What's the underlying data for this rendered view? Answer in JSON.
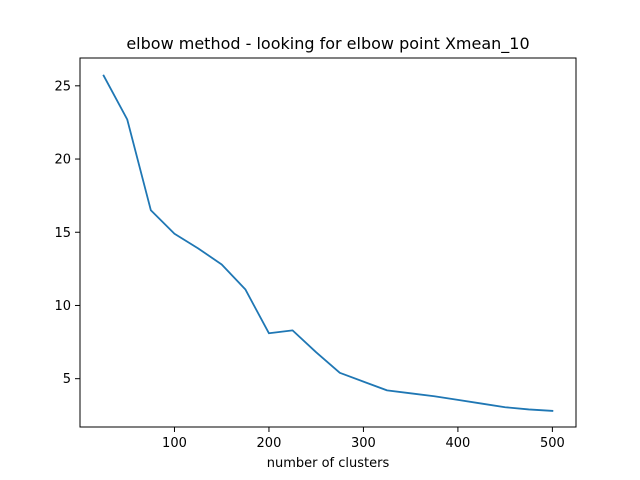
{
  "chart_data": {
    "type": "line",
    "title": "elbow method - looking for elbow point Xmean_10",
    "xlabel": "number of clusters",
    "ylabel": "",
    "xlim": [
      0,
      525
    ],
    "ylim": [
      1.7,
      26.9
    ],
    "xticks": [
      100,
      200,
      300,
      400,
      500
    ],
    "yticks": [
      5,
      10,
      15,
      20,
      25
    ],
    "grid": false,
    "line_color": "#1f77b4",
    "series": [
      {
        "x": [
          25,
          50,
          75,
          100,
          125,
          150,
          175,
          200,
          225,
          250,
          275,
          300,
          325,
          350,
          375,
          400,
          425,
          450,
          475,
          500
        ],
        "values": [
          25.7,
          22.7,
          16.5,
          14.9,
          13.9,
          12.8,
          11.1,
          8.1,
          8.3,
          6.8,
          5.4,
          4.8,
          4.2,
          4.0,
          3.8,
          3.55,
          3.3,
          3.05,
          2.9,
          2.8
        ]
      }
    ]
  }
}
